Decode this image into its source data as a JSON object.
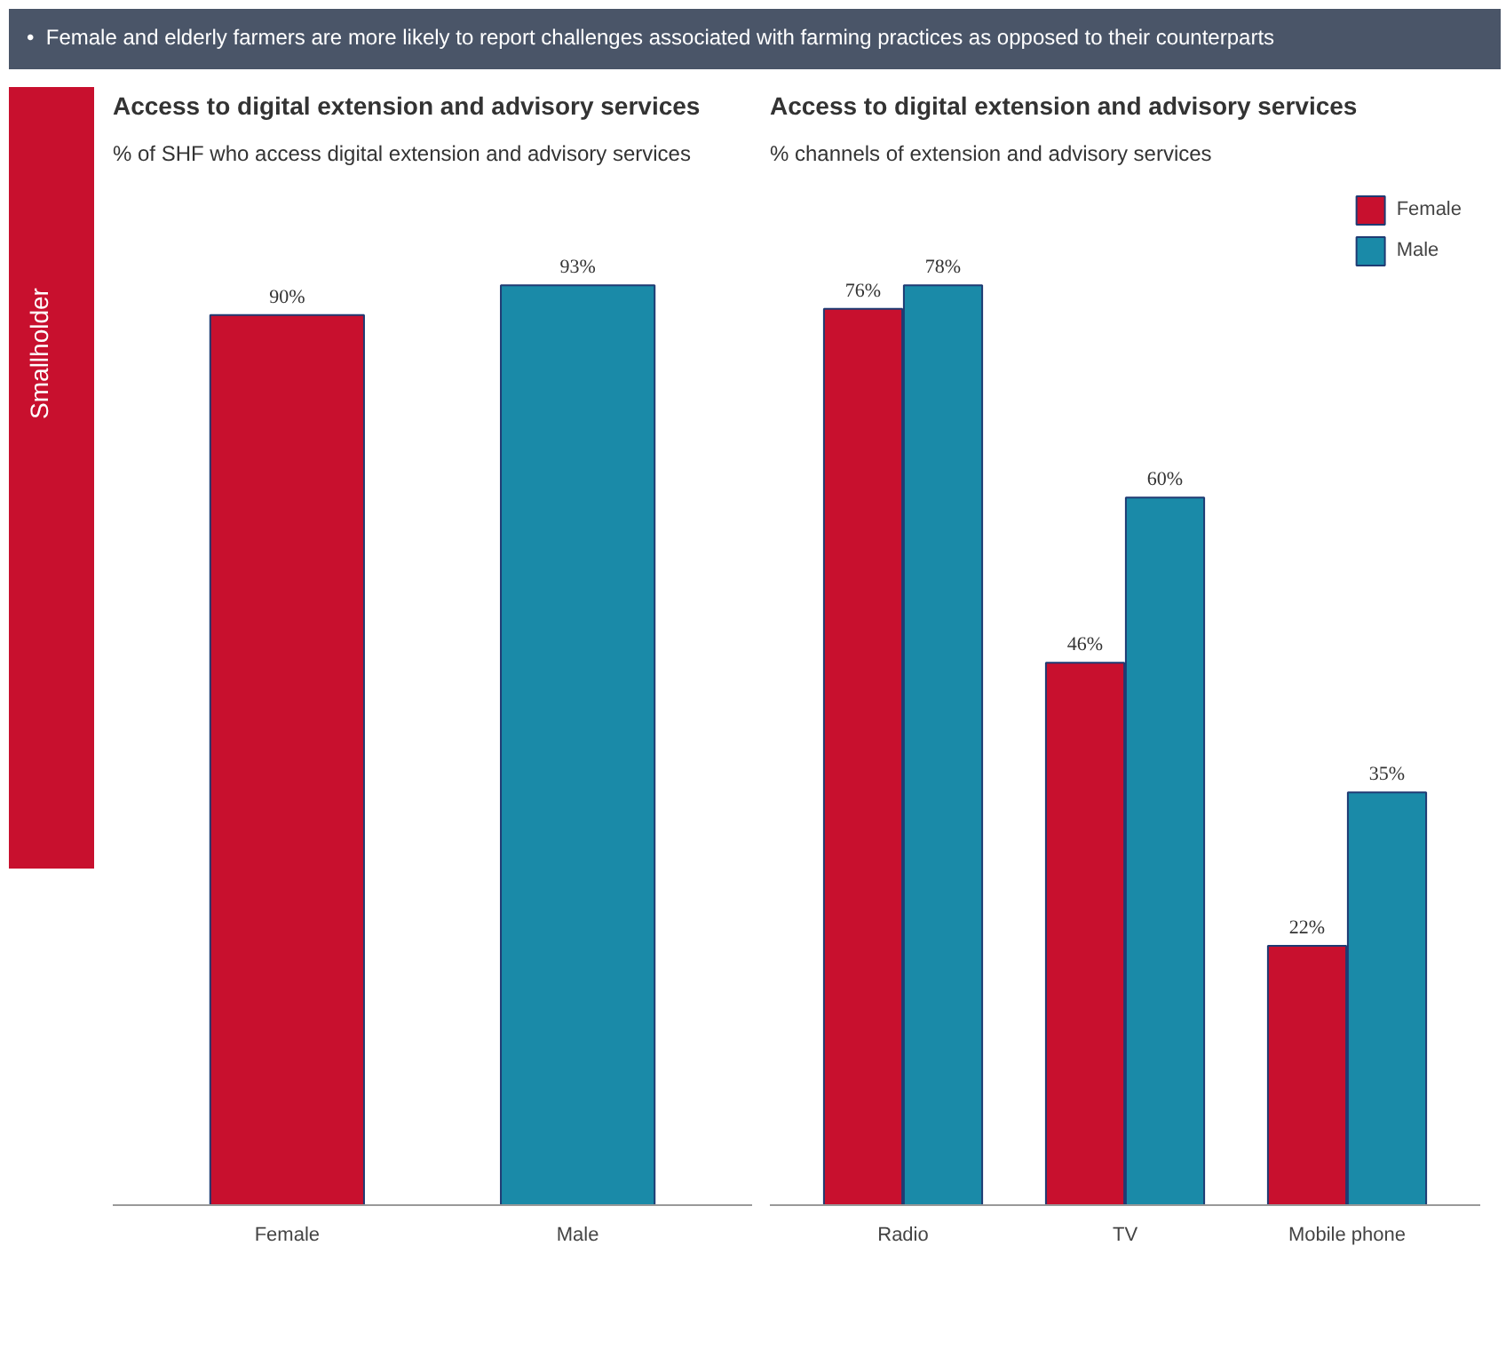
{
  "chart_data": [
    {
      "type": "bar",
      "title": "Access to digital extension and advisory services",
      "subtitle": "% of SHF who access digital extension and advisory services",
      "annotations": [
        "•  Female and elderly farmers are more likely to report challenges associated with farming practices as opposed to their counterparts",
        "Smallholder"
      ],
      "categories": [
        "Female",
        "Male"
      ],
      "values": [
        90,
        93
      ],
      "colors": [
        "#c8102e",
        "#1a8aa8"
      ],
      "value_labels": [
        "90%",
        "93%"
      ],
      "tick_labels": "x",
      "grid": false
    },
    {
      "type": "bar",
      "title": "Access to digital extension and advisory services",
      "subtitle": "% channels of extension and advisory services",
      "categories": [
        "Radio",
        "TV",
        "Mobile phone"
      ],
      "series": [
        {
          "name": "Female",
          "color": "#c8102e",
          "values": [
            76,
            46,
            22
          ],
          "value_labels": [
            "76%",
            "46%",
            "22%"
          ]
        },
        {
          "name": "Male",
          "color": "#1a8aa8",
          "values": [
            78,
            60,
            35
          ],
          "value_labels": [
            "78%",
            "60%",
            "35%"
          ]
        }
      ],
      "tick_labels": "x",
      "grid": false,
      "legend": "top right"
    }
  ]
}
